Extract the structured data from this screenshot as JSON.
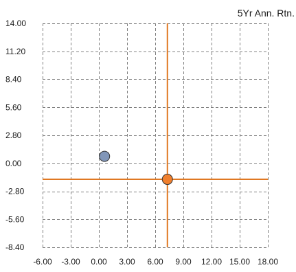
{
  "chart_data": {
    "type": "scatter",
    "title": "5Yr Ann. Rtn.",
    "xlabel": "",
    "ylabel": "",
    "xlim": [
      -6.0,
      18.0
    ],
    "ylim": [
      -8.4,
      14.0
    ],
    "x_ticks": [
      -6.0,
      -3.0,
      0.0,
      3.0,
      6.0,
      9.0,
      12.0,
      15.0,
      18.0
    ],
    "x_tick_labels": [
      "-6.00",
      "-3.00",
      "0.00",
      "3.00",
      "6.00",
      "9.00",
      "12.00",
      "15.00",
      "18.00"
    ],
    "y_ticks": [
      14.0,
      11.2,
      8.4,
      5.6,
      2.8,
      0.0,
      -2.8,
      -5.6,
      -8.4
    ],
    "y_tick_labels": [
      "14.00",
      "11.20",
      "8.40",
      "5.60",
      "2.80",
      "0.00",
      "-2.80",
      "-5.60",
      "-8.40"
    ],
    "grid": true,
    "series": [
      {
        "points": [
          {
            "x": 0.6,
            "y": 0.7
          }
        ],
        "color": "#8196b8"
      },
      {
        "points": [
          {
            "x": 7.3,
            "y": -1.6
          }
        ],
        "color": "#f07f2d",
        "crosshair": true
      }
    ],
    "crosshair_color": "#e07822"
  }
}
